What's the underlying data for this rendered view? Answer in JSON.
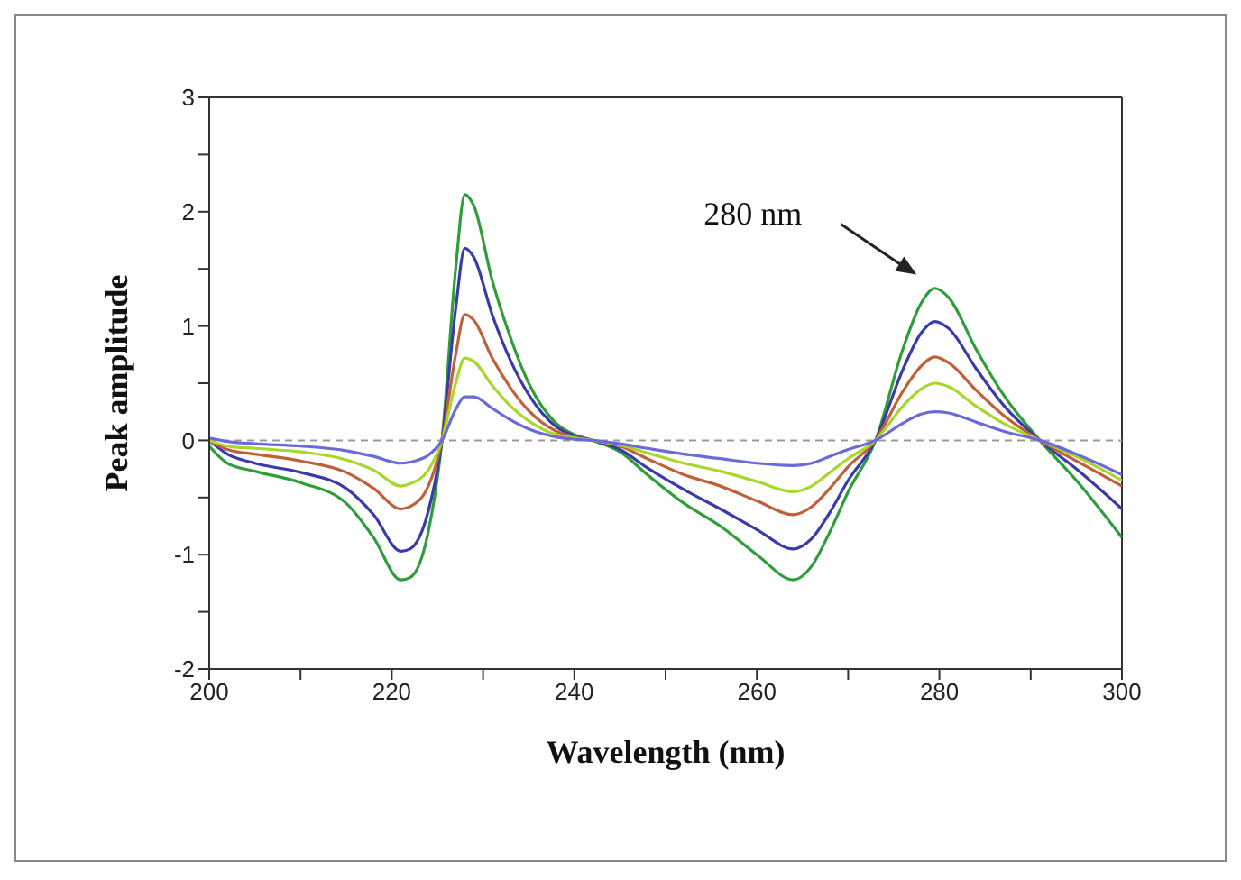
{
  "chart_data": {
    "type": "line",
    "xlabel": "Wavelength (nm)",
    "ylabel": "Peak amplitude",
    "x": [
      200,
      202,
      205,
      210,
      215,
      218,
      221,
      222,
      224,
      225.5,
      227,
      228,
      229,
      231,
      233,
      235,
      238,
      240,
      242,
      245,
      248,
      252,
      256,
      260,
      264,
      266,
      268,
      270,
      273,
      276,
      278,
      279.5,
      281,
      284,
      287,
      291,
      295,
      300
    ],
    "series": [
      {
        "color": "#2f9e3a",
        "values": [
          -0.05,
          -0.2,
          -0.27,
          -0.37,
          -0.55,
          -0.85,
          -1.22,
          -1.2,
          -0.8,
          0,
          1.5,
          2.15,
          2.05,
          1.4,
          0.9,
          0.5,
          0.15,
          0.05,
          0,
          -0.1,
          -0.3,
          -0.55,
          -0.75,
          -1.0,
          -1.22,
          -1.1,
          -0.8,
          -0.45,
          0,
          0.8,
          1.2,
          1.33,
          1.25,
          0.8,
          0.4,
          0,
          -0.35,
          -0.85
        ]
      },
      {
        "color": "#3a3aa8",
        "values": [
          0,
          -0.12,
          -0.2,
          -0.28,
          -0.42,
          -0.65,
          -0.97,
          -0.95,
          -0.62,
          0,
          1.15,
          1.68,
          1.6,
          1.1,
          0.7,
          0.4,
          0.12,
          0.04,
          0,
          -0.08,
          -0.24,
          -0.43,
          -0.6,
          -0.78,
          -0.95,
          -0.86,
          -0.63,
          -0.35,
          0,
          0.62,
          0.94,
          1.04,
          0.98,
          0.63,
          0.31,
          0,
          -0.25,
          -0.6
        ]
      },
      {
        "color": "#c0603a",
        "values": [
          0,
          -0.08,
          -0.12,
          -0.18,
          -0.28,
          -0.42,
          -0.6,
          -0.58,
          -0.4,
          0,
          0.75,
          1.1,
          1.05,
          0.72,
          0.46,
          0.26,
          0.08,
          0.03,
          0,
          -0.05,
          -0.16,
          -0.3,
          -0.4,
          -0.53,
          -0.65,
          -0.58,
          -0.42,
          -0.23,
          0,
          0.43,
          0.65,
          0.73,
          0.68,
          0.44,
          0.22,
          0,
          -0.18,
          -0.4
        ]
      },
      {
        "color": "#a8d62a",
        "values": [
          0,
          -0.05,
          -0.07,
          -0.1,
          -0.17,
          -0.26,
          -0.4,
          -0.38,
          -0.26,
          0,
          0.5,
          0.72,
          0.69,
          0.48,
          0.3,
          0.17,
          0.05,
          0.02,
          0,
          -0.04,
          -0.11,
          -0.2,
          -0.27,
          -0.36,
          -0.45,
          -0.4,
          -0.28,
          -0.16,
          0,
          0.3,
          0.45,
          0.5,
          0.47,
          0.3,
          0.15,
          0,
          -0.14,
          -0.35
        ]
      },
      {
        "color": "#6a6ad8",
        "values": [
          0.02,
          -0.01,
          -0.03,
          -0.05,
          -0.09,
          -0.14,
          -0.2,
          -0.19,
          -0.13,
          0,
          0.27,
          0.38,
          0.38,
          0.28,
          0.18,
          0.1,
          0.03,
          0.01,
          0,
          -0.03,
          -0.07,
          -0.12,
          -0.16,
          -0.2,
          -0.22,
          -0.2,
          -0.14,
          -0.08,
          0,
          0.15,
          0.23,
          0.25,
          0.24,
          0.16,
          0.08,
          0,
          -0.12,
          -0.3
        ]
      }
    ],
    "xlim": [
      200,
      300
    ],
    "xticks": [
      200,
      {
        "value": 210,
        "label": null
      },
      220,
      {
        "value": 230,
        "label": null
      },
      240,
      {
        "value": 250,
        "label": null
      },
      260,
      {
        "value": 270,
        "label": null
      },
      280,
      {
        "value": 290,
        "label": null
      },
      300
    ],
    "ylim": [
      -2,
      3
    ],
    "yticks": [
      -2,
      {
        "value": -1.5,
        "label": null
      },
      -1,
      {
        "value": -0.5,
        "label": null
      },
      0,
      {
        "value": 0.5,
        "label": null
      },
      1,
      {
        "value": 1.5,
        "label": null
      },
      2,
      {
        "value": 2.5,
        "label": null
      },
      3
    ],
    "ref_lines": [
      {
        "axis": "y",
        "value": 0,
        "color": "#999999",
        "line_style": "dashed"
      }
    ],
    "annotations": [
      "280 nm"
    ],
    "grid": false,
    "legend": false,
    "marker": "none",
    "line_style": "solid"
  }
}
